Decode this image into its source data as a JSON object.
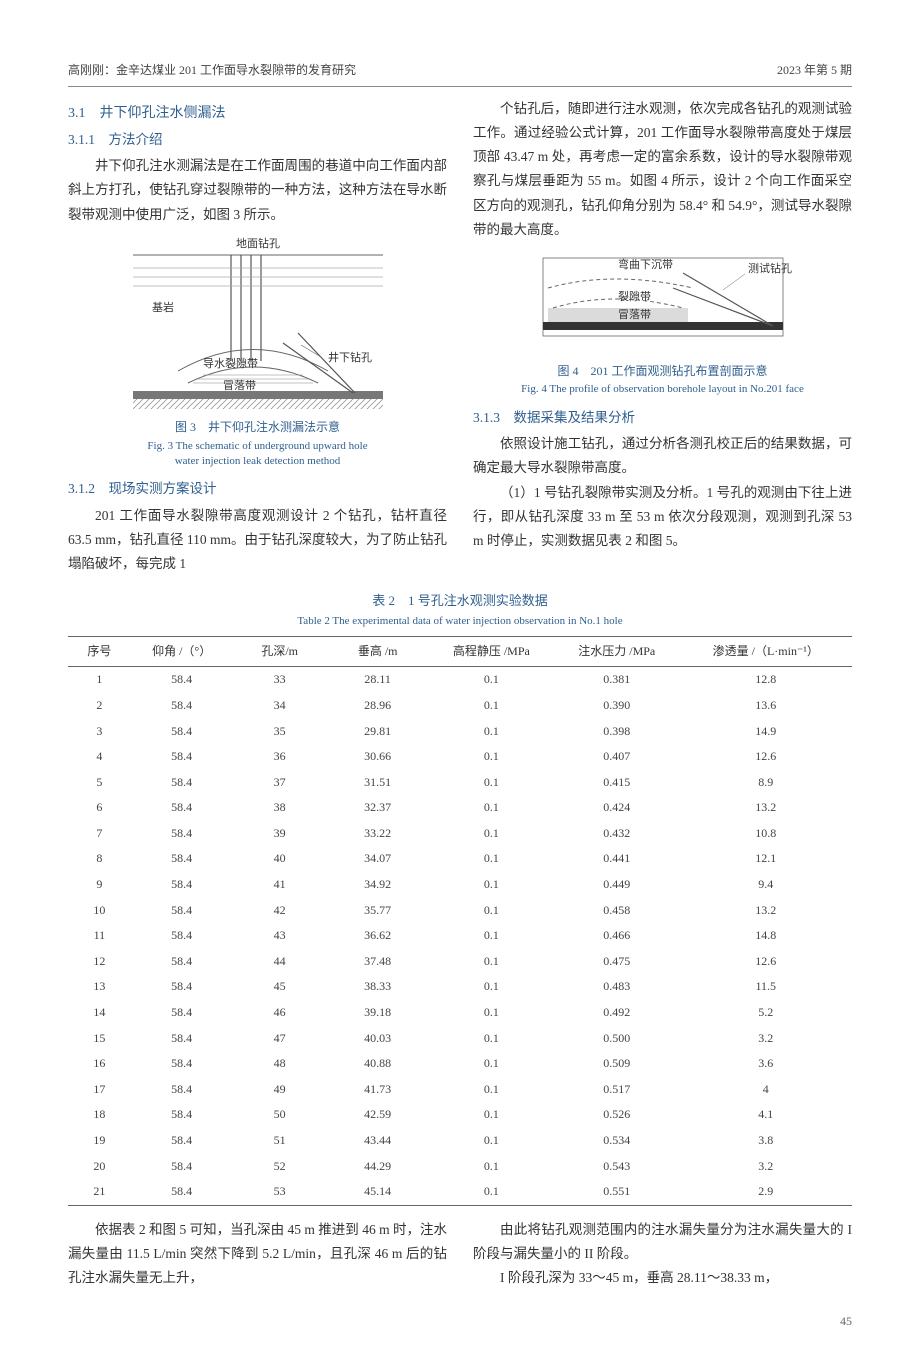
{
  "header": {
    "left": "高刚刚：金辛达煤业 201 工作面导水裂隙带的发育研究",
    "right": "2023 年第 5 期"
  },
  "sections": {
    "s31_num": "3.1",
    "s31_title": "井下仰孔注水侧漏法",
    "s311_num": "3.1.1",
    "s311_title": "方法介绍",
    "p311": "井下仰孔注水测漏法是在工作面周围的巷道中向工作面内部斜上方打孔，使钻孔穿过裂隙带的一种方法，这种方法在导水断裂带观测中使用广泛，如图 3 所示。",
    "s312_num": "3.1.2",
    "s312_title": "现场实测方案设计",
    "p312a": "201 工作面导水裂隙带高度观测设计 2 个钻孔，钻杆直径 63.5 mm，钻孔直径 110 mm。由于钻孔深度较大，为了防止钻孔塌陷破坏，每完成 1",
    "p312b": "个钻孔后，随即进行注水观测，依次完成各钻孔的观测试验工作。通过经验公式计算，201 工作面导水裂隙带高度处于煤层顶部 43.47 m 处，再考虑一定的富余系数，设计的导水裂隙带观察孔与煤层垂距为 55 m。如图 4 所示，设计 2 个向工作面采空区方向的观测孔，钻孔仰角分别为 58.4° 和 54.9°，测试导水裂隙带的最大高度。",
    "s313_num": "3.1.3",
    "s313_title": "数据采集及结果分析",
    "p313a": "依照设计施工钻孔，通过分析各测孔校正后的结果数据，可确定最大导水裂隙带高度。",
    "p313b": "（1）1 号钻孔裂隙带实测及分析。1 号孔的观测由下往上进行，即从钻孔深度 33 m 至 53 m 依次分段观测，观测到孔深 53 m 时停止，实测数据见表 2 和图 5。",
    "p_after1": "依据表 2 和图 5 可知，当孔深由 45 m 推进到 46 m 时，注水漏失量由 11.5 L/min 突然下降到 5.2 L/min，且孔深 46 m 后的钻孔注水漏失量无上升，",
    "p_after2": "由此将钻孔观测范围内的注水漏失量分为注水漏失量大的 I 阶段与漏失量小的 II 阶段。",
    "p_after3": "I 阶段孔深为 33～45 m，垂高 28.11～38.33 m，"
  },
  "fig3": {
    "label_surface": "地面钻孔",
    "label_bedrock": "基岩",
    "label_fissure": "导水裂隙带",
    "label_caving": "冒落带",
    "label_underhole": "井下钻孔",
    "cap_cn": "图 3　井下仰孔注水测漏法示意",
    "cap_en1": "Fig. 3  The schematic of underground upward hole",
    "cap_en2": "water injection leak detection method"
  },
  "fig4": {
    "label_curve": "弯曲下沉带",
    "label_testhole": "测试钻孔",
    "label_fissure": "裂隙带",
    "label_caving": "冒落带",
    "cap_cn": "图 4　201 工作面观测钻孔布置剖面示意",
    "cap_en": "Fig. 4  The profile of observation borehole layout in No.201 face"
  },
  "table2": {
    "title_cn": "表 2　1 号孔注水观测实验数据",
    "title_en": "Table 2  The experimental data of water injection observation in No.1 hole",
    "columns": [
      "序号",
      "仰角 /（°）",
      "孔深/m",
      "垂高 /m",
      "高程静压 /MPa",
      "注水压力 /MPa",
      "渗透量 /（L·min⁻¹）"
    ],
    "rows": [
      [
        "1",
        "58.4",
        "33",
        "28.11",
        "0.1",
        "0.381",
        "12.8"
      ],
      [
        "2",
        "58.4",
        "34",
        "28.96",
        "0.1",
        "0.390",
        "13.6"
      ],
      [
        "3",
        "58.4",
        "35",
        "29.81",
        "0.1",
        "0.398",
        "14.9"
      ],
      [
        "4",
        "58.4",
        "36",
        "30.66",
        "0.1",
        "0.407",
        "12.6"
      ],
      [
        "5",
        "58.4",
        "37",
        "31.51",
        "0.1",
        "0.415",
        "8.9"
      ],
      [
        "6",
        "58.4",
        "38",
        "32.37",
        "0.1",
        "0.424",
        "13.2"
      ],
      [
        "7",
        "58.4",
        "39",
        "33.22",
        "0.1",
        "0.432",
        "10.8"
      ],
      [
        "8",
        "58.4",
        "40",
        "34.07",
        "0.1",
        "0.441",
        "12.1"
      ],
      [
        "9",
        "58.4",
        "41",
        "34.92",
        "0.1",
        "0.449",
        "9.4"
      ],
      [
        "10",
        "58.4",
        "42",
        "35.77",
        "0.1",
        "0.458",
        "13.2"
      ],
      [
        "11",
        "58.4",
        "43",
        "36.62",
        "0.1",
        "0.466",
        "14.8"
      ],
      [
        "12",
        "58.4",
        "44",
        "37.48",
        "0.1",
        "0.475",
        "12.6"
      ],
      [
        "13",
        "58.4",
        "45",
        "38.33",
        "0.1",
        "0.483",
        "11.5"
      ],
      [
        "14",
        "58.4",
        "46",
        "39.18",
        "0.1",
        "0.492",
        "5.2"
      ],
      [
        "15",
        "58.4",
        "47",
        "40.03",
        "0.1",
        "0.500",
        "3.2"
      ],
      [
        "16",
        "58.4",
        "48",
        "40.88",
        "0.1",
        "0.509",
        "3.6"
      ],
      [
        "17",
        "58.4",
        "49",
        "41.73",
        "0.1",
        "0.517",
        "4"
      ],
      [
        "18",
        "58.4",
        "50",
        "42.59",
        "0.1",
        "0.526",
        "4.1"
      ],
      [
        "19",
        "58.4",
        "51",
        "43.44",
        "0.1",
        "0.534",
        "3.8"
      ],
      [
        "20",
        "58.4",
        "52",
        "44.29",
        "0.1",
        "0.543",
        "3.2"
      ],
      [
        "21",
        "58.4",
        "53",
        "45.14",
        "0.1",
        "0.551",
        "2.9"
      ]
    ],
    "col_widths": [
      "8%",
      "13%",
      "12%",
      "13%",
      "16%",
      "16%",
      "22%"
    ]
  },
  "page_num": "45",
  "colors": {
    "accent": "#2f5f8f",
    "rule": "#888888",
    "text": "#333333",
    "idx": "#3a6aa0"
  }
}
